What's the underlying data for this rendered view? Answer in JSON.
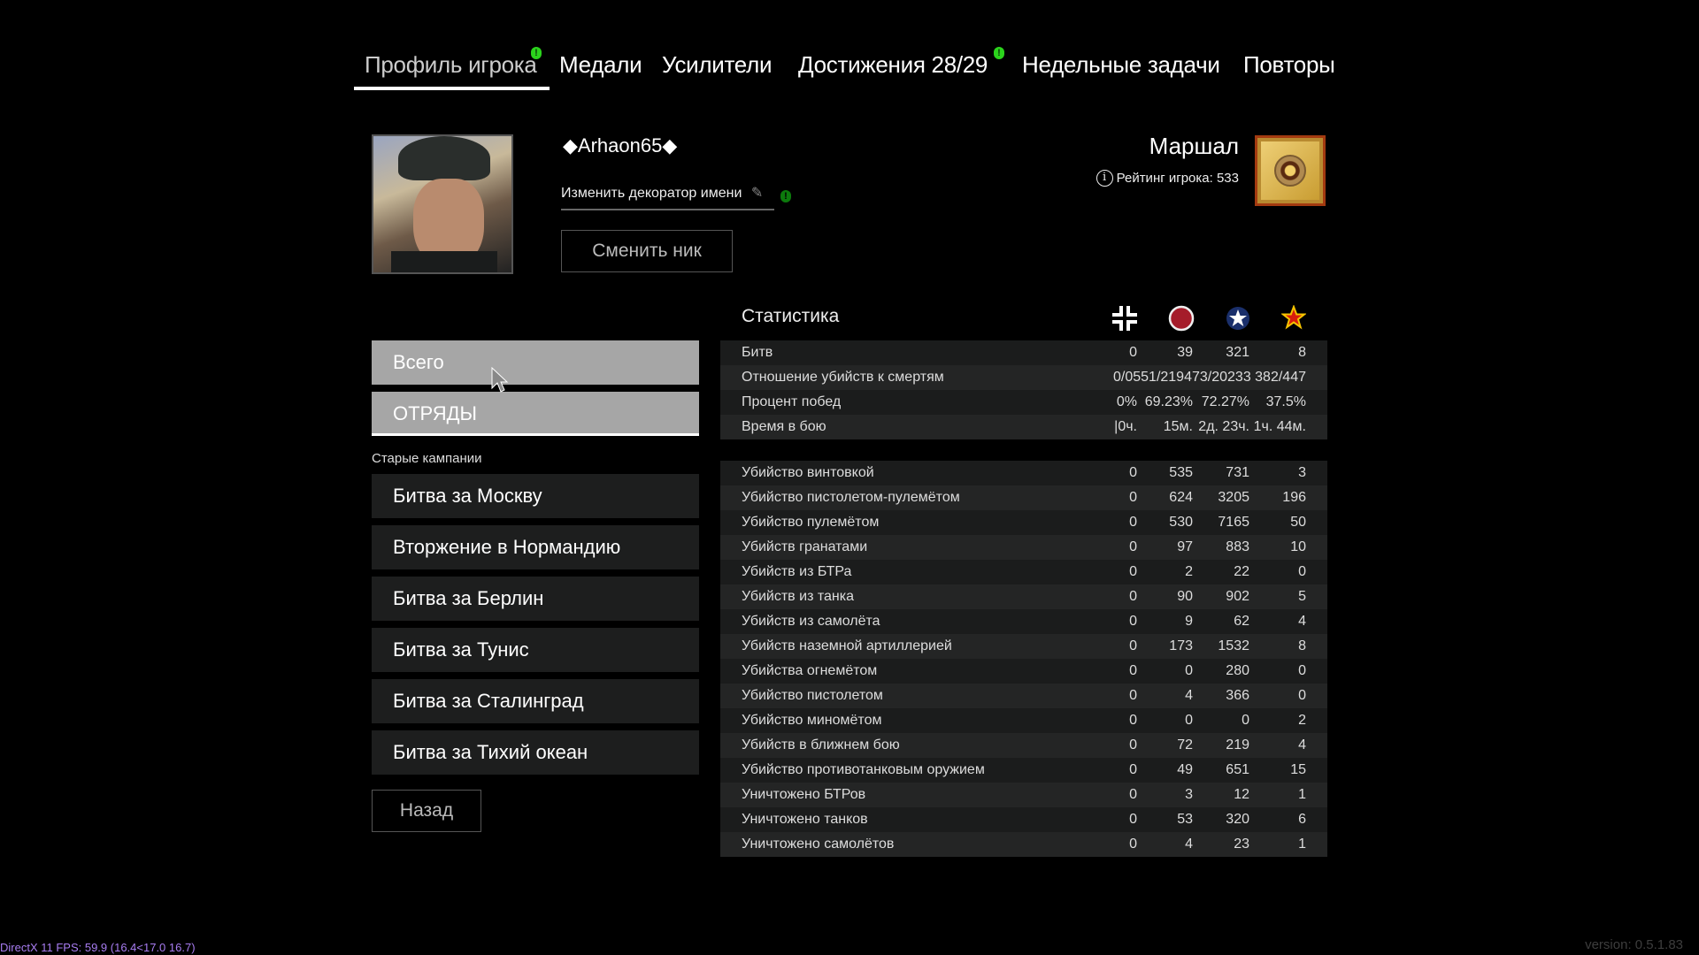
{
  "tabs": [
    {
      "label": "Профиль игрока",
      "active": true,
      "notify": true
    },
    {
      "label": "Медали"
    },
    {
      "label": "Усилители"
    },
    {
      "label": "Достижения 28/29",
      "notify": true
    },
    {
      "label": "Недельные задачи"
    },
    {
      "label": "Повторы"
    }
  ],
  "profile": {
    "name": "◆Arhaon65◆",
    "decorator_label": "Изменить декоратор имени",
    "change_nick": "Сменить ник",
    "rank": "Маршал",
    "rating": "Рейтинг игрока: 533"
  },
  "menu": {
    "all": "Всего",
    "squads": "ОТРЯДЫ",
    "old_campaigns": "Старые кампании",
    "campaigns": [
      "Битва за Москву",
      "Вторжение в Нормандию",
      "Битва за Берлин",
      "Битва за Тунис",
      "Битва за Сталинград",
      "Битва за Тихий океан"
    ],
    "back": "Назад"
  },
  "stats": {
    "title": "Статистика",
    "columns": [
      "axis-cross-icon",
      "allies-roundel-icon",
      "usa-star-icon",
      "soviet-star-icon"
    ],
    "general": [
      {
        "label": "Битв",
        "values": [
          "0",
          "39",
          "321",
          "8"
        ]
      },
      {
        "label": "Отношение убийств к смертям",
        "values": [
          "0/0551/219473/20233 382/447"
        ]
      },
      {
        "label": "Процент побед",
        "values": [
          "0%",
          "69.23%",
          "72.27%",
          "37.5%"
        ]
      },
      {
        "label": "Время в бою",
        "values": [
          "|0ч.",
          "15м.",
          "2д. 23ч.",
          "1ч. 44м."
        ]
      }
    ],
    "kills": [
      {
        "label": "Убийство винтовкой",
        "values": [
          "0",
          "535",
          "731",
          "3"
        ]
      },
      {
        "label": "Убийство пистолетом-пулемётом",
        "values": [
          "0",
          "624",
          "3205",
          "196"
        ]
      },
      {
        "label": "Убийство пулемётом",
        "values": [
          "0",
          "530",
          "7165",
          "50"
        ]
      },
      {
        "label": "Убийств гранатами",
        "values": [
          "0",
          "97",
          "883",
          "10"
        ]
      },
      {
        "label": "Убийств из БТРа",
        "values": [
          "0",
          "2",
          "22",
          "0"
        ]
      },
      {
        "label": "Убийств из танка",
        "values": [
          "0",
          "90",
          "902",
          "5"
        ]
      },
      {
        "label": "Убийств из самолёта",
        "values": [
          "0",
          "9",
          "62",
          "4"
        ]
      },
      {
        "label": "Убийств наземной артиллерией",
        "values": [
          "0",
          "173",
          "1532",
          "8"
        ]
      },
      {
        "label": "Убийства огнемётом",
        "values": [
          "0",
          "0",
          "280",
          "0"
        ]
      },
      {
        "label": "Убийство пистолетом",
        "values": [
          "0",
          "4",
          "366",
          "0"
        ]
      },
      {
        "label": "Убийство миномётом",
        "values": [
          "0",
          "0",
          "0",
          "2"
        ]
      },
      {
        "label": "Убийств в ближнем бою",
        "values": [
          "0",
          "72",
          "219",
          "4"
        ]
      },
      {
        "label": "Убийство противотанковым оружием",
        "values": [
          "0",
          "49",
          "651",
          "15"
        ]
      },
      {
        "label": "Уничтожено БТРов",
        "values": [
          "0",
          "3",
          "12",
          "1"
        ]
      },
      {
        "label": "Уничтожено танков",
        "values": [
          "0",
          "53",
          "320",
          "6"
        ]
      },
      {
        "label": "Уничтожено самолётов",
        "values": [
          "0",
          "4",
          "23",
          "1"
        ]
      }
    ]
  },
  "footer": {
    "fps": "DirectX 11 FPS: 59.9 (16.4<17.0 16.7)",
    "version": "version: 0.5.1.83"
  }
}
